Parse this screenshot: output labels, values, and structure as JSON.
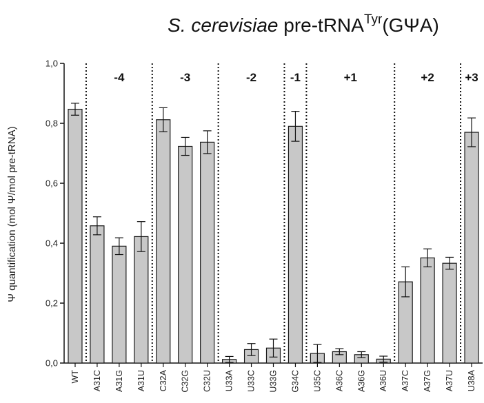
{
  "chart_data": {
    "type": "bar",
    "title": {
      "italic": "S. cerevisiae",
      "main": " pre-tRNA",
      "superscript": "Tyr",
      "suffix": "(GΨA)"
    },
    "ylabel": "Ψ quantification (mol Ψ/mol pre-tRNA)",
    "ylim": [
      0,
      1.0
    ],
    "yticks": [
      "0,0",
      "0,2",
      "0,4",
      "0,6",
      "0,8",
      "1,0"
    ],
    "categories": [
      "WT",
      "A31C",
      "A31G",
      "A31U",
      "C32A",
      "C32G",
      "C32U",
      "U33A",
      "U33C",
      "U33G",
      "G34C",
      "U35C",
      "A36C",
      "A36G",
      "A36U",
      "A37C",
      "A37G",
      "A37U",
      "U38A"
    ],
    "values": [
      0.847,
      0.458,
      0.39,
      0.422,
      0.812,
      0.723,
      0.737,
      0.012,
      0.045,
      0.05,
      0.79,
      0.032,
      0.038,
      0.028,
      0.013,
      0.271,
      0.351,
      0.333,
      0.77
    ],
    "errors": [
      0.02,
      0.03,
      0.028,
      0.05,
      0.04,
      0.03,
      0.038,
      0.01,
      0.02,
      0.03,
      0.05,
      0.03,
      0.01,
      0.01,
      0.01,
      0.05,
      0.03,
      0.02,
      0.048
    ],
    "groups": [
      {
        "label": "-4",
        "start": 1,
        "end": 3
      },
      {
        "label": "-3",
        "start": 4,
        "end": 6
      },
      {
        "label": "-2",
        "start": 7,
        "end": 9
      },
      {
        "label": "-1",
        "start": 10,
        "end": 10
      },
      {
        "label": "+1",
        "start": 11,
        "end": 14
      },
      {
        "label": "+2",
        "start": 15,
        "end": 17
      },
      {
        "label": "+3",
        "start": 18,
        "end": 18
      }
    ],
    "bar_color": "#c8c8c8",
    "edge_color": "#1a1a1a",
    "grid": false
  }
}
